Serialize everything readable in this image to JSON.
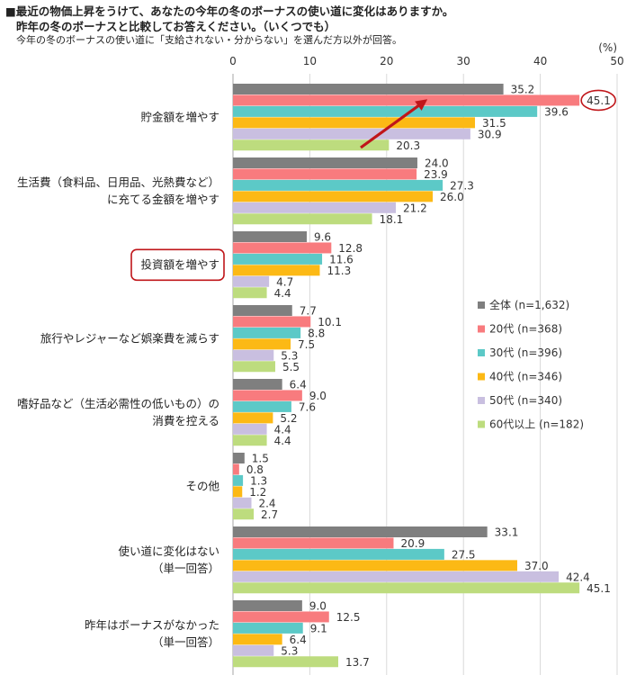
{
  "header": {
    "line1": "■最近の物価上昇をうけて、あなたの今年の冬のボーナスの使い道に変化はありますか。",
    "line2": "昨年の冬のボーナスと比較してお答えください。（いくつでも）",
    "note": "今年の冬のボーナスの使い道に「支給されない・分からない」を選んだ方以外が回答。"
  },
  "chart_data": {
    "type": "bar",
    "orientation": "horizontal",
    "unit": "(%)",
    "xlim": [
      0,
      50
    ],
    "ticks": [
      0,
      10,
      20,
      30,
      40,
      50
    ],
    "grid": true,
    "legend_position": "right",
    "categories": [
      [
        "貯金額を増やす"
      ],
      [
        "生活費（食料品、日用品、光熱費など）",
        "に充てる金額を増やす"
      ],
      [
        "投資額を増やす"
      ],
      [
        "旅行やレジャーなど娯楽費を減らす"
      ],
      [
        "嗜好品など（生活必需性の低いもの）の",
        "消費を控える"
      ],
      [
        "その他"
      ],
      [
        "使い道に変化はない",
        "（単一回答）"
      ],
      [
        "昨年はボーナスがなかった",
        "（単一回答）"
      ]
    ],
    "series": [
      {
        "name": "全体 (n=1,632)",
        "color": "#7f7f7f",
        "values": [
          35.2,
          24.0,
          9.6,
          7.7,
          6.4,
          1.5,
          33.1,
          9.0
        ]
      },
      {
        "name": "20代 (n=368)",
        "color": "#f87b7e",
        "values": [
          45.1,
          23.9,
          12.8,
          10.1,
          9.0,
          0.8,
          20.9,
          12.5
        ]
      },
      {
        "name": "30代 (n=396)",
        "color": "#5cc9c7",
        "values": [
          39.6,
          27.3,
          11.6,
          8.8,
          7.6,
          1.3,
          27.5,
          9.1
        ]
      },
      {
        "name": "40代 (n=346)",
        "color": "#fcb915",
        "values": [
          31.5,
          26.0,
          11.3,
          7.5,
          5.2,
          1.2,
          37.0,
          6.4
        ]
      },
      {
        "name": "50代 (n=340)",
        "color": "#c9bfe0",
        "values": [
          30.9,
          21.2,
          4.7,
          5.3,
          4.4,
          2.4,
          42.4,
          5.3
        ]
      },
      {
        "name": "60代以上 (n=182)",
        "color": "#bddc7e",
        "values": [
          20.3,
          18.1,
          4.4,
          5.5,
          4.4,
          2.7,
          45.1,
          13.7
        ]
      }
    ],
    "highlights": {
      "color": "#c0161a",
      "circled_value": {
        "category": 0,
        "series": 1
      },
      "boxed_category": 2,
      "arrow_category": 0
    }
  }
}
